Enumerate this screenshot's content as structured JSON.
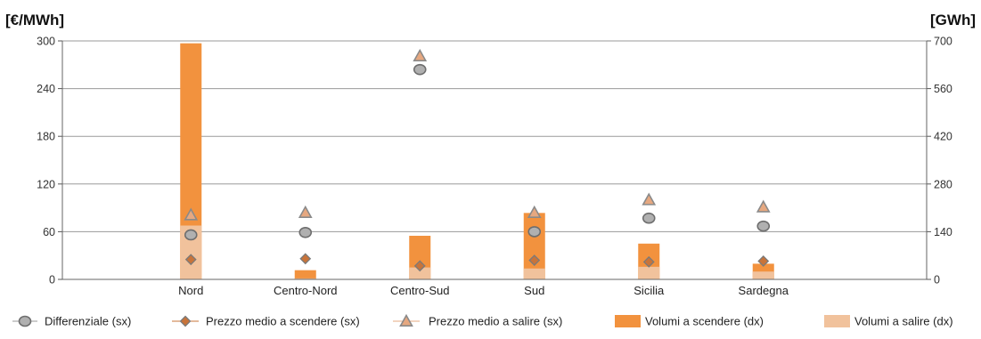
{
  "chart_data": {
    "type": "bar",
    "title": "",
    "y_left_label": "[€/MWh]",
    "y_right_label": "[GWh]",
    "y_left_ticks": [
      "0",
      "60",
      "120",
      "180",
      "240",
      "300"
    ],
    "y_right_ticks": [
      "0",
      "140",
      "280",
      "420",
      "560",
      "700"
    ],
    "ylim_left": [
      0,
      300
    ],
    "ylim_right": [
      0,
      700
    ],
    "grid": true,
    "legend_position": "bottom",
    "categories": [
      "Nord",
      "Centro-Nord",
      "Centro-Sud",
      "Sud",
      "Sicilia",
      "Sardegna"
    ],
    "series": [
      {
        "name": "Differenziale (sx)",
        "kind": "marker-circle",
        "axis": "left",
        "color": "#b0b0b0",
        "values": [
          56,
          59,
          264,
          60,
          77,
          67
        ]
      },
      {
        "name": "Prezzo medio a scendere (sx)",
        "kind": "marker-diamond",
        "axis": "left",
        "color": "#c8743a",
        "values": [
          25,
          26,
          17,
          24,
          22,
          23
        ]
      },
      {
        "name": "Prezzo medio a salire (sx)",
        "kind": "marker-triangle",
        "axis": "left",
        "color": "#e6a880",
        "values": [
          81,
          84,
          281,
          84,
          100,
          91
        ]
      },
      {
        "name": "Volumi a scendere (dx)",
        "kind": "bar",
        "axis": "right",
        "color": "#f2923e",
        "values": [
          693,
          27,
          128,
          195,
          105,
          46
        ]
      },
      {
        "name": "Volumi a salire (dx)",
        "kind": "bar",
        "axis": "right",
        "color": "#f1c29c",
        "values": [
          158,
          3,
          35,
          32,
          37,
          23
        ]
      }
    ]
  }
}
